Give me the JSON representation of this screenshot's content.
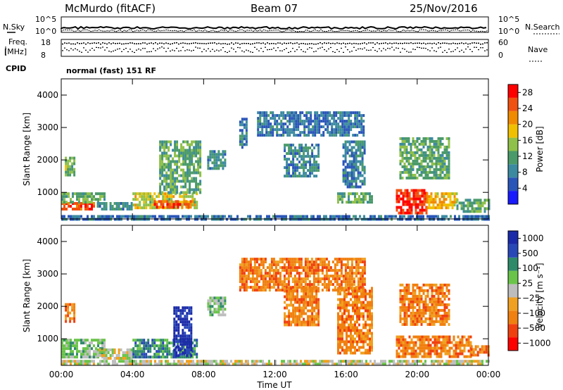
{
  "header": {
    "station": "McMurdo (fitACF)",
    "beam": "Beam 07",
    "date": "25/Nov/2016"
  },
  "summary_panel": {
    "nsky_label": "N.Sky",
    "freq_label_1": "Freq.",
    "freq_label_2": "[MHz]",
    "cpid_label": "CPID",
    "nsearch_label": "N.Search",
    "nave_label": "Nave",
    "nsky_ticks": [
      "10^5",
      "10^0"
    ],
    "nsearch_ticks": [
      "10^5",
      "10^0"
    ],
    "freq_ticks": [
      "18",
      "8"
    ],
    "nave_ticks": [
      "60",
      "0"
    ],
    "cpid_text": "normal (fast) 151 RF"
  },
  "colors": {
    "power_scale": [
      "#1a1aff",
      "#2a55b8",
      "#3c8aa0",
      "#4a9a6a",
      "#8fc04a",
      "#f0c000",
      "#f08a00",
      "#f05010",
      "#ff0000"
    ],
    "velocity_scale": [
      "#1a2aa8",
      "#2848b8",
      "#2f8a6a",
      "#6ac44a",
      "#bdbdbd",
      "#f0a020",
      "#f08010",
      "#f04010",
      "#ff0000"
    ]
  },
  "chart_data": [
    {
      "type": "heatmap",
      "name": "power",
      "ylabel": "Slant Range [km]",
      "xlabel": "",
      "ylim": [
        180,
        4500
      ],
      "yticks": [
        "1000",
        "2000",
        "3000",
        "4000"
      ],
      "colorbar_label": "Power [dB]",
      "colorbar_ticks": [
        "4",
        "8",
        "12",
        "16",
        "20",
        "24",
        "28"
      ],
      "colorbar_range": [
        0,
        30
      ],
      "echo_regions": [
        {
          "t0": 0.0,
          "t1": 1.8,
          "r0": 450,
          "r1": 700,
          "level": 27
        },
        {
          "t0": 0.0,
          "t1": 2.4,
          "r0": 700,
          "r1": 1000,
          "level": 13
        },
        {
          "t0": 2.0,
          "t1": 4.0,
          "r0": 480,
          "r1": 700,
          "level": 9
        },
        {
          "t0": 4.0,
          "t1": 7.6,
          "r0": 520,
          "r1": 1000,
          "level": 17
        },
        {
          "t0": 5.2,
          "t1": 7.4,
          "r0": 560,
          "r1": 760,
          "level": 26
        },
        {
          "t0": 0.2,
          "t1": 0.7,
          "r0": 1500,
          "r1": 2100,
          "level": 13
        },
        {
          "t0": 5.5,
          "t1": 7.8,
          "r0": 1000,
          "r1": 2600,
          "level": 12
        },
        {
          "t0": 8.2,
          "t1": 9.2,
          "r0": 1700,
          "r1": 2300,
          "level": 9
        },
        {
          "t0": 10.0,
          "t1": 10.4,
          "r0": 2400,
          "r1": 3300,
          "level": 7
        },
        {
          "t0": 12.5,
          "t1": 14.5,
          "r0": 1500,
          "r1": 2500,
          "level": 8
        },
        {
          "t0": 11.0,
          "t1": 17.0,
          "r0": 2800,
          "r1": 3500,
          "level": 6
        },
        {
          "t0": 15.5,
          "t1": 17.5,
          "r0": 700,
          "r1": 1000,
          "level": 12
        },
        {
          "t0": 15.8,
          "t1": 17.0,
          "r0": 1200,
          "r1": 2600,
          "level": 7
        },
        {
          "t0": 18.8,
          "t1": 20.5,
          "r0": 350,
          "r1": 1100,
          "level": 29
        },
        {
          "t0": 20.5,
          "t1": 22.2,
          "r0": 500,
          "r1": 1000,
          "level": 20
        },
        {
          "t0": 22.2,
          "t1": 24.0,
          "r0": 400,
          "r1": 800,
          "level": 12
        },
        {
          "t0": 19.0,
          "t1": 21.8,
          "r0": 1400,
          "r1": 2700,
          "level": 12
        },
        {
          "t0": 0.0,
          "t1": 24.0,
          "r0": 180,
          "r1": 300,
          "level": 6
        }
      ]
    },
    {
      "type": "heatmap",
      "name": "velocity",
      "ylabel": "Slant Range [km]",
      "xlabel": "Time UT",
      "ylim": [
        180,
        4500
      ],
      "xlim": [
        "00:00",
        "24:00"
      ],
      "xticks": [
        "00:00",
        "04:00",
        "08:00",
        "12:00",
        "16:00",
        "20:00",
        "00:00"
      ],
      "yticks": [
        "1000",
        "2000",
        "3000",
        "4000"
      ],
      "colorbar_label": "Velocity [m s⁻¹]",
      "colorbar_ticks": [
        "1000",
        "500",
        "100",
        "25",
        "−25",
        "−100",
        "−500",
        "−1000"
      ],
      "echo_regions": [
        {
          "t0": 0.0,
          "t1": 2.4,
          "r0": 400,
          "r1": 1000,
          "level": 3
        },
        {
          "t0": 2.0,
          "t1": 4.0,
          "r0": 400,
          "r1": 700,
          "level": 4
        },
        {
          "t0": 4.0,
          "t1": 7.6,
          "r0": 450,
          "r1": 1000,
          "level": 2
        },
        {
          "t0": 6.3,
          "t1": 7.3,
          "r0": 500,
          "r1": 2000,
          "level": 0
        },
        {
          "t0": 0.2,
          "t1": 0.7,
          "r0": 1500,
          "r1": 2100,
          "level": 6
        },
        {
          "t0": 8.2,
          "t1": 9.2,
          "r0": 1700,
          "r1": 2300,
          "level": 3
        },
        {
          "t0": 10.0,
          "t1": 17.0,
          "r0": 2500,
          "r1": 3500,
          "level": 6
        },
        {
          "t0": 12.5,
          "t1": 14.5,
          "r0": 1400,
          "r1": 2600,
          "level": 6
        },
        {
          "t0": 15.5,
          "t1": 17.5,
          "r0": 600,
          "r1": 2600,
          "level": 6
        },
        {
          "t0": 18.8,
          "t1": 23.0,
          "r0": 450,
          "r1": 1100,
          "level": 6
        },
        {
          "t0": 19.0,
          "t1": 21.8,
          "r0": 1400,
          "r1": 2700,
          "level": 6
        },
        {
          "t0": 23.0,
          "t1": 24.0,
          "r0": 500,
          "r1": 800,
          "level": 6
        },
        {
          "t0": 0.0,
          "t1": 24.0,
          "r0": 180,
          "r1": 350,
          "level": 4
        }
      ]
    }
  ]
}
